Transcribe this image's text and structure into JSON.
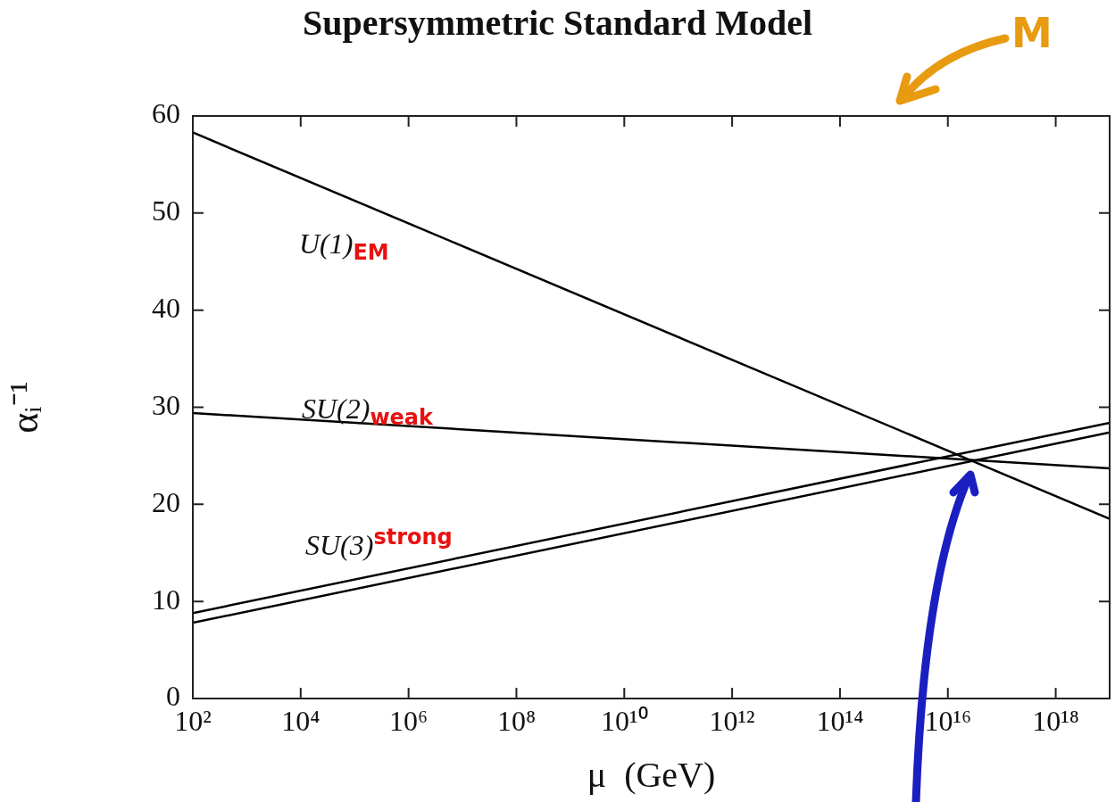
{
  "chart_data": {
    "type": "line",
    "title": "Supersymmetric Standard Model",
    "xlabel": "μ  (GeV)",
    "ylabel": "αᵢ⁻¹",
    "x": [
      100,
      1e+19
    ],
    "log": "x",
    "xlim": [
      100,
      1e+19
    ],
    "xticks": [
      {
        "value": 100,
        "label": "10²"
      },
      {
        "value": 10000.0,
        "label": "10⁴"
      },
      {
        "value": 1000000.0,
        "label": "10⁶"
      },
      {
        "value": 100000000.0,
        "label": "10⁸"
      },
      {
        "value": 10000000000.0,
        "label": "10¹⁰"
      },
      {
        "value": 1000000000000.0,
        "label": "10¹²"
      },
      {
        "value": 100000000000000.0,
        "label": "10¹⁴"
      },
      {
        "value": 1e+16,
        "label": "10¹⁶"
      },
      {
        "value": 1e+18,
        "label": "10¹⁸"
      }
    ],
    "ylim": [
      0,
      60
    ],
    "yticks": [
      0,
      10,
      20,
      30,
      40,
      50,
      60
    ],
    "grid": false,
    "legend": false,
    "marker": "none",
    "line_style": "solid",
    "series": [
      {
        "color": "#000000",
        "values": [
          58.3,
          18.5
        ]
      },
      {
        "color": "#000000",
        "values": [
          29.4,
          23.7
        ]
      },
      {
        "color": "#000000",
        "values": [
          8.8,
          28.4
        ]
      },
      {
        "color": "#000000",
        "values": [
          7.8,
          27.4
        ]
      }
    ],
    "annotations": [
      "U(1)$_{EM}$",
      "SU(2)$_{weak}$",
      "SU(3)$^{strong}$",
      "M"
    ]
  }
}
